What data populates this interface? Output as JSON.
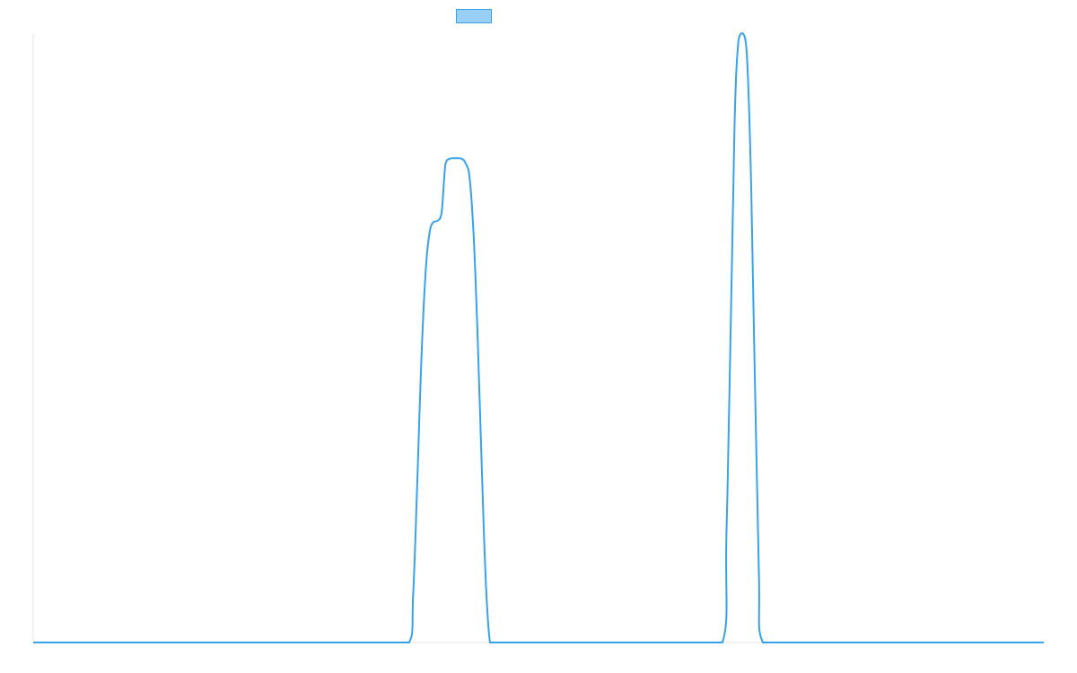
{
  "chart_data": {
    "type": "line",
    "title": "",
    "xlabel": "",
    "ylabel": "",
    "grid": false,
    "legend": "top-center",
    "x": [
      0,
      0.05,
      0.1,
      0.15,
      0.2,
      0.25,
      0.3,
      0.35,
      0.372,
      0.376,
      0.38,
      0.384,
      0.388,
      0.392,
      0.396,
      0.4,
      0.404,
      0.408,
      0.412,
      0.416,
      0.42,
      0.424,
      0.428,
      0.432,
      0.436,
      0.44,
      0.444,
      0.448,
      0.452,
      0.456,
      0.46,
      0.464,
      0.5,
      0.55,
      0.6,
      0.65,
      0.682,
      0.686,
      0.69,
      0.694,
      0.698,
      0.702,
      0.706,
      0.71,
      0.714,
      0.718,
      0.722,
      0.75,
      0.8,
      0.85,
      0.9,
      0.95,
      1.0
    ],
    "xlim": [
      0,
      1
    ],
    "ylim": [
      0,
      1
    ],
    "series": [
      {
        "color": "#36a2eb",
        "fill": "#9ad0f5",
        "values": [
          0,
          0,
          0,
          0,
          0,
          0,
          0,
          0,
          0,
          0.08,
          0.26,
          0.46,
          0.6,
          0.67,
          0.69,
          0.692,
          0.704,
          0.786,
          0.794,
          0.795,
          0.795,
          0.794,
          0.786,
          0.76,
          0.662,
          0.49,
          0.28,
          0.095,
          0,
          0,
          0,
          0,
          0,
          0,
          0,
          0,
          0,
          0.18,
          0.5,
          0.85,
          0.99,
          1.0,
          0.97,
          0.78,
          0.44,
          0.12,
          0,
          0,
          0,
          0,
          0,
          0,
          0
        ]
      }
    ]
  }
}
